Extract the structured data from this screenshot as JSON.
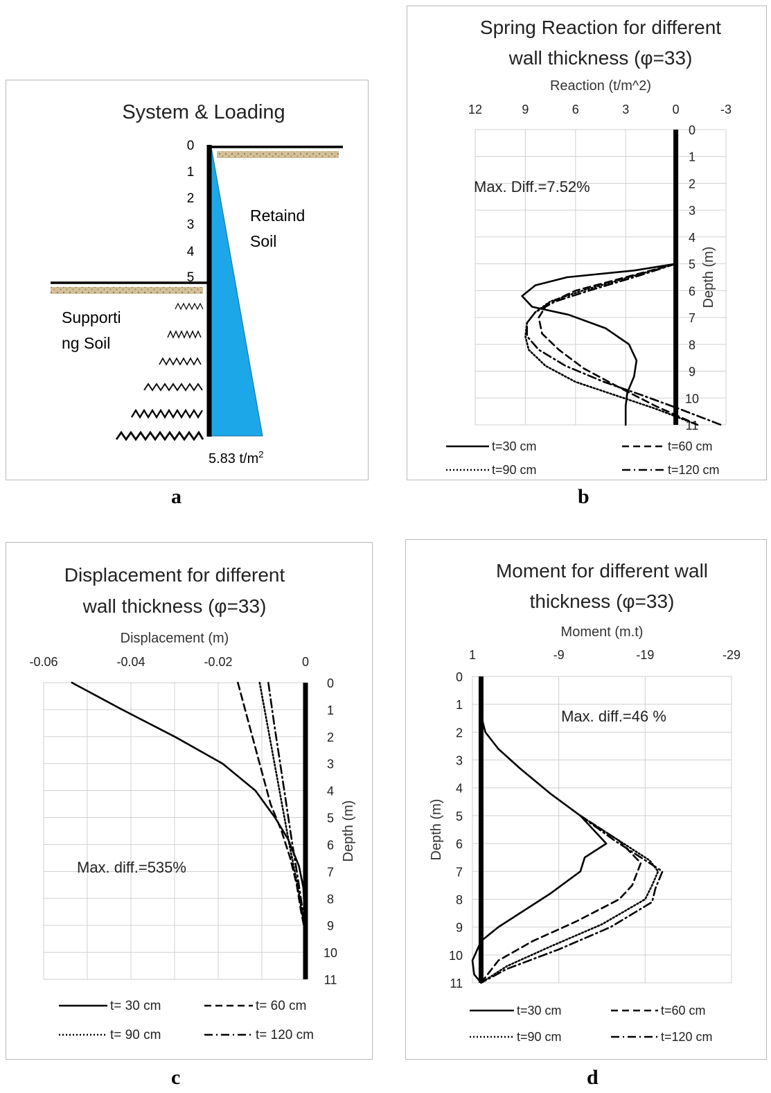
{
  "letters": {
    "a": "a",
    "b": "b",
    "c": "c",
    "d": "d"
  },
  "panel_a": {
    "title": "System & Loading",
    "depth_labels": [
      "0",
      "1",
      "2",
      "3",
      "4",
      "5"
    ],
    "retained_label_1": "Retaind",
    "retained_label_2": "Soil",
    "supporting_label_1": "Supporti",
    "supporting_label_2": "ng Soil",
    "load_value": "5.83 t/m",
    "load_unit_sup": "2",
    "colors": {
      "pressure": "#1ca7e8",
      "soil": "#c9b38c",
      "wall": "#000000"
    }
  },
  "chart_data": [
    {
      "id": "b",
      "type": "line",
      "title": [
        "Spring Reaction for different",
        "wall thickness (φ=33)"
      ],
      "xlabel": "Reaction (t/m^2)",
      "ylabel": "Depth (m)",
      "xlim": [
        12,
        -3
      ],
      "ylim": [
        0,
        11
      ],
      "xticks": [
        12,
        9,
        6,
        3,
        0,
        -3
      ],
      "yticks": [
        0,
        1,
        2,
        3,
        4,
        5,
        6,
        7,
        8,
        9,
        10,
        11
      ],
      "annotation": "Max. Diff.=7.52%",
      "legend": [
        "t=30 cm",
        "t=60 cm",
        "t=90 cm",
        "t=120 cm"
      ],
      "series": [
        {
          "name": "t=30 cm",
          "dash": "solid",
          "x": [
            0,
            2.5,
            6.5,
            8.4,
            9.2,
            8.6,
            6.4,
            4.2,
            2.8,
            2.35,
            2.5,
            2.9,
            3.0,
            3.0
          ],
          "y": [
            5,
            5.25,
            5.5,
            5.8,
            6.2,
            6.6,
            6.9,
            7.4,
            8.0,
            8.6,
            9.2,
            9.8,
            10.3,
            11
          ]
        },
        {
          "name": "t=60 cm",
          "dash": "dash",
          "x": [
            0,
            3.0,
            6.0,
            7.7,
            8.2,
            8.0,
            7.0,
            5.5,
            3.4,
            1.2,
            -1.3
          ],
          "y": [
            5,
            5.5,
            6.0,
            6.5,
            7.0,
            7.6,
            8.2,
            8.9,
            9.6,
            10.3,
            11
          ]
        },
        {
          "name": "t=90 cm",
          "dash": "dot",
          "x": [
            0,
            2.8,
            5.6,
            7.5,
            8.4,
            8.9,
            9.0,
            8.8,
            7.8,
            6.0,
            3.6,
            1.2,
            -1.3
          ],
          "y": [
            5,
            5.5,
            6.0,
            6.4,
            6.8,
            7.2,
            7.7,
            8.2,
            8.8,
            9.4,
            9.9,
            10.4,
            11
          ]
        },
        {
          "name": "t=120 cm",
          "dash": "dashdot",
          "x": [
            0,
            2.5,
            5.2,
            7.2,
            8.4,
            8.9,
            8.9,
            8.2,
            6.6,
            4.3,
            2.0,
            -0.2,
            -2.7
          ],
          "y": [
            5,
            5.5,
            6.0,
            6.4,
            6.8,
            7.2,
            7.7,
            8.2,
            8.8,
            9.4,
            9.9,
            10.4,
            11
          ]
        }
      ]
    },
    {
      "id": "c",
      "type": "line",
      "title": [
        "Displacement for different",
        "wall thickness (φ=33)"
      ],
      "xlabel": "Displacement (m)",
      "ylabel": "Depth (m)",
      "xlim": [
        -0.06,
        0
      ],
      "ylim": [
        0,
        11
      ],
      "xticks": [
        -0.06,
        -0.04,
        -0.02,
        0
      ],
      "yticks": [
        0,
        1,
        2,
        3,
        4,
        5,
        6,
        7,
        8,
        9,
        10,
        11
      ],
      "annotation": "Max. diff.=535%",
      "legend": [
        "t= 30 cm",
        "t= 60 cm",
        "t= 90 cm",
        "t= 120 cm"
      ],
      "series": [
        {
          "name": "t= 30 cm",
          "dash": "solid",
          "x": [
            -0.0535,
            -0.042,
            -0.03,
            -0.019,
            -0.0115,
            -0.007,
            -0.004,
            -0.0015,
            -0.0005,
            0
          ],
          "y": [
            0,
            1,
            2,
            3,
            4,
            5,
            5.8,
            6.8,
            7.6,
            9.2
          ]
        },
        {
          "name": "t= 60 cm",
          "dash": "dash",
          "x": [
            -0.0155,
            -0.013,
            -0.0105,
            -0.008,
            -0.0055,
            -0.0035,
            -0.002,
            -0.001,
            0
          ],
          "y": [
            0,
            1.5,
            3,
            4.5,
            5.5,
            6.5,
            7.5,
            8.5,
            9.3
          ]
        },
        {
          "name": "t= 90 cm",
          "dash": "dot",
          "x": [
            -0.0105,
            -0.0088,
            -0.0071,
            -0.0054,
            -0.0037,
            -0.0022,
            -0.001,
            0
          ],
          "y": [
            0,
            1.5,
            3,
            4.5,
            6,
            7.2,
            8.3,
            9.3
          ]
        },
        {
          "name": "t= 120 cm",
          "dash": "dashdot",
          "x": [
            -0.0085,
            -0.0072,
            -0.0058,
            -0.0044,
            -0.003,
            -0.0018,
            -0.0008,
            0
          ],
          "y": [
            0,
            1.5,
            3,
            4.5,
            6,
            7.2,
            8.3,
            9.3
          ]
        }
      ]
    },
    {
      "id": "d",
      "type": "line",
      "title": [
        "Moment for different wall",
        "thickness (φ=33)"
      ],
      "xlabel": "Moment (m.t)",
      "ylabel": "Depth (m)",
      "xlim": [
        1,
        -29
      ],
      "ylim": [
        0,
        11
      ],
      "xticks": [
        1,
        -9,
        -19,
        -29
      ],
      "yticks": [
        0,
        1,
        2,
        3,
        4,
        5,
        6,
        7,
        8,
        9,
        10,
        11
      ],
      "annotation": "Max. diff.=46 %",
      "legend": [
        "t=30 cm",
        "t=60 cm",
        "t=90 cm",
        "t=120 cm"
      ],
      "series": [
        {
          "name": "t=30 cm",
          "dash": "solid",
          "x": [
            0,
            -0.5,
            -2,
            -4.5,
            -8,
            -11.5,
            -14.5,
            -12,
            -11.5,
            -8,
            -4.5,
            -2,
            0,
            1.0,
            0.8,
            0
          ],
          "y": [
            1.4,
            2,
            2.6,
            3.3,
            4.2,
            5,
            6,
            6.5,
            7,
            7.8,
            8.5,
            9.0,
            9.5,
            10.2,
            10.7,
            11
          ]
        },
        {
          "name": "t=60 cm",
          "dash": "dash",
          "x": [
            -11.5,
            -16,
            -18.5,
            -17.5,
            -16,
            -11,
            -6,
            -2,
            0
          ],
          "y": [
            5,
            5.9,
            6.7,
            7.5,
            8,
            8.8,
            9.5,
            10.2,
            11
          ]
        },
        {
          "name": "t=90 cm",
          "dash": "dot",
          "x": [
            -11.5,
            -16,
            -19.5,
            -20.5,
            -19.8,
            -19,
            -14,
            -8,
            -3,
            0
          ],
          "y": [
            5,
            5.9,
            6.6,
            7,
            7.5,
            8,
            8.9,
            9.7,
            10.4,
            11
          ]
        },
        {
          "name": "t=120 cm",
          "dash": "dashdot",
          "x": [
            -11.5,
            -15.5,
            -19,
            -21,
            -20.2,
            -19.8,
            -15,
            -9,
            -3,
            0
          ],
          "y": [
            5,
            5.9,
            6.6,
            7,
            7.6,
            8.1,
            9,
            9.8,
            10.5,
            11
          ]
        }
      ]
    }
  ]
}
